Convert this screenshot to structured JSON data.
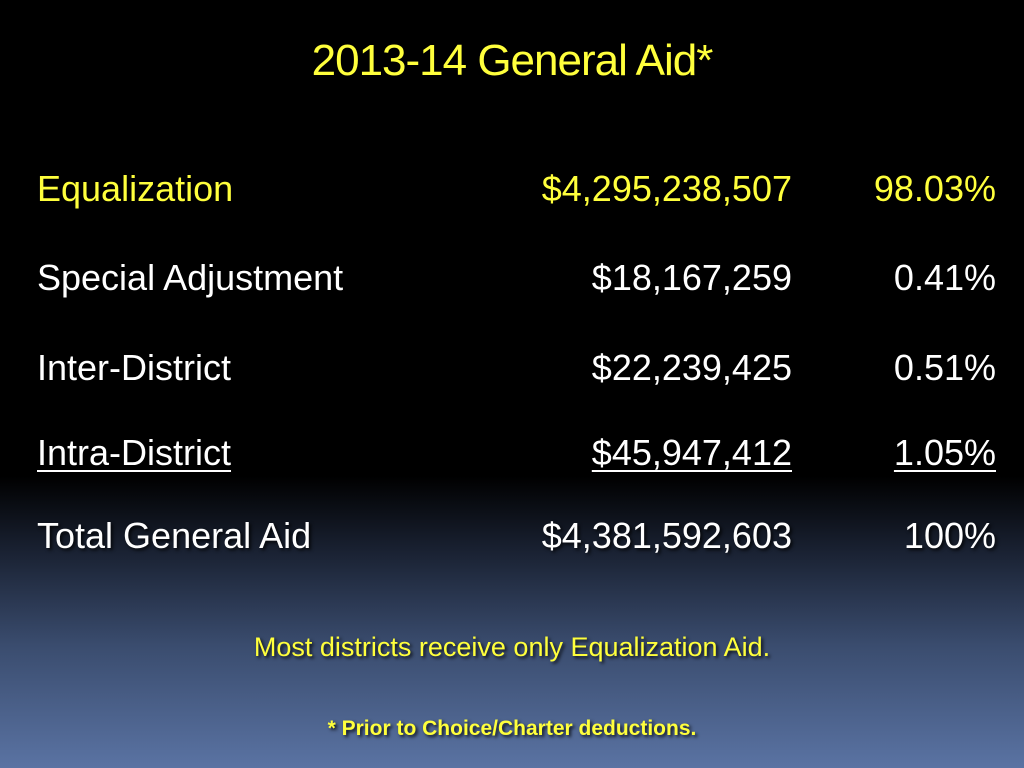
{
  "title": "2013-14 General Aid*",
  "table": {
    "rows": [
      {
        "label": "Equalization",
        "amount": "$4,295,238,507",
        "percent": "98.03%"
      },
      {
        "label": "Special Adjustment",
        "amount": "$18,167,259",
        "percent": "0.41%"
      },
      {
        "label": "Inter-District",
        "amount": "$22,239,425",
        "percent": "0.51%"
      },
      {
        "label": "Intra-District",
        "amount": "$45,947,412",
        "percent": "1.05%"
      },
      {
        "label": "Total General Aid",
        "amount": "$4,381,592,603",
        "percent": "100%"
      }
    ]
  },
  "notes": {
    "main": "Most districts receive only Equalization Aid.",
    "footnote": "* Prior to Choice/Charter deductions."
  },
  "colors": {
    "accent": "#ffff3c",
    "text": "#ffffff",
    "background_top": "#000000",
    "background_bottom": "#5a73a3"
  }
}
